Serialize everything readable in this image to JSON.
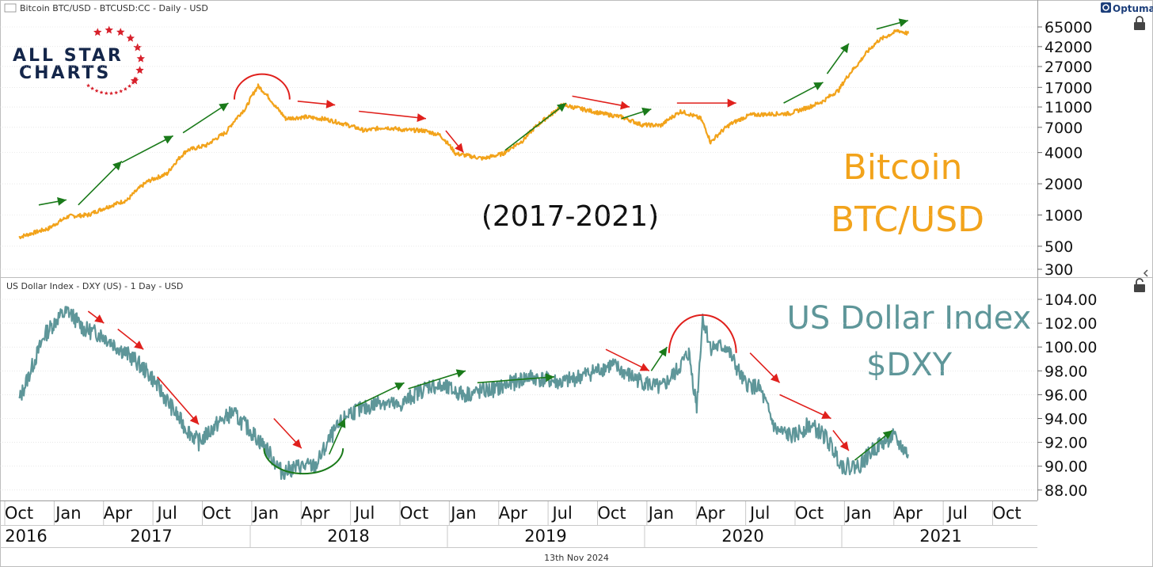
{
  "header": {
    "btc_title": "Bitcoin BTC/USD - BTCUSD:CC - Daily - USD",
    "dxy_title": "US Dollar Index - DXY (US) - 1 Day - USD",
    "brand": "Optuma",
    "footer_date": "13th Nov 2024"
  },
  "logo": {
    "line1": "ALL STAR",
    "line2": "CHARTS",
    "icon": "star-ring-icon"
  },
  "labels": {
    "btc_line1": "Bitcoin",
    "btc_line2": "BTC/USD",
    "dxy_line1": "US Dollar Index",
    "dxy_line2": "$DXY",
    "range": "(2017-2021)"
  },
  "colors": {
    "btc": "#f2a31b",
    "dxy": "#5e9699",
    "up_arrow": "#1a7a1a",
    "down_arrow": "#e0201c",
    "grid": "#d9d9d9"
  },
  "chart_data": [
    {
      "type": "line",
      "title": "Bitcoin BTC/USD - BTCUSD:CC - Daily - USD",
      "scale": "log",
      "y_ticks": [
        300,
        500,
        1000,
        2000,
        4000,
        7000,
        11000,
        17000,
        27000,
        42000,
        65000
      ],
      "y_tick_labels": [
        "300",
        "500",
        "1000",
        "2000",
        "4000",
        "7000",
        "11000",
        "17000",
        "27000",
        "42000",
        "65000"
      ],
      "x": [
        2016.75,
        2016.9,
        2017.0,
        2017.1,
        2017.2,
        2017.3,
        2017.4,
        2017.5,
        2017.6,
        2017.7,
        2017.8,
        2017.9,
        2017.96,
        2018.05,
        2018.1,
        2018.2,
        2018.3,
        2018.4,
        2018.5,
        2018.6,
        2018.7,
        2018.8,
        2018.88,
        2018.96,
        2019.1,
        2019.2,
        2019.3,
        2019.45,
        2019.5,
        2019.6,
        2019.7,
        2019.8,
        2019.9,
        2020.0,
        2020.1,
        2020.2,
        2020.25,
        2020.35,
        2020.45,
        2020.55,
        2020.65,
        2020.75,
        2020.82,
        2020.9,
        2021.0,
        2021.1,
        2021.2,
        2021.25
      ],
      "values": [
        610,
        740,
        970,
        1000,
        1200,
        1400,
        2100,
        2500,
        4200,
        4700,
        6300,
        10800,
        17500,
        11000,
        8500,
        8800,
        8400,
        7500,
        6500,
        7000,
        6600,
        6500,
        5900,
        3900,
        3500,
        3900,
        5200,
        9500,
        11500,
        10500,
        9500,
        8800,
        7400,
        7300,
        10000,
        8500,
        5000,
        7500,
        9200,
        9400,
        9500,
        11000,
        12500,
        16000,
        29000,
        48000,
        60000,
        56000
      ]
    },
    {
      "type": "line",
      "title": "US Dollar Index - DXY (US) - 1 Day - USD",
      "y_ticks": [
        88,
        90,
        92,
        94,
        96,
        98,
        100,
        102,
        104
      ],
      "y_tick_labels": [
        "88.00",
        "90.00",
        "92.00",
        "94.00",
        "96.00",
        "98.00",
        "100.00",
        "102.00",
        "104.00"
      ],
      "x": [
        2016.75,
        2016.82,
        2016.88,
        2016.95,
        2017.0,
        2017.08,
        2017.17,
        2017.25,
        2017.33,
        2017.42,
        2017.5,
        2017.58,
        2017.66,
        2017.75,
        2017.83,
        2017.92,
        2018.0,
        2018.08,
        2018.17,
        2018.25,
        2018.33,
        2018.42,
        2018.5,
        2018.58,
        2018.67,
        2018.75,
        2018.83,
        2018.92,
        2019.0,
        2019.17,
        2019.33,
        2019.5,
        2019.67,
        2019.75,
        2019.85,
        2019.92,
        2020.0,
        2020.08,
        2020.14,
        2020.18,
        2020.21,
        2020.25,
        2020.33,
        2020.42,
        2020.5,
        2020.58,
        2020.67,
        2020.75,
        2020.83,
        2020.92,
        2021.0,
        2021.08,
        2021.17,
        2021.25
      ],
      "values": [
        95.5,
        98.5,
        101.0,
        102.5,
        103.0,
        101.5,
        101.0,
        100.0,
        99.0,
        97.5,
        95.5,
        93.5,
        92.0,
        93.5,
        94.5,
        93.0,
        91.5,
        89.5,
        90.0,
        90.0,
        92.5,
        94.5,
        94.8,
        95.5,
        95.0,
        96.0,
        96.8,
        96.5,
        96.0,
        96.5,
        97.5,
        97.0,
        98.0,
        98.5,
        97.5,
        97.0,
        96.5,
        98.0,
        99.5,
        95.0,
        102.5,
        100.0,
        100.0,
        97.0,
        96.5,
        93.0,
        92.5,
        93.5,
        92.5,
        90.0,
        90.0,
        91.5,
        92.5,
        91.0
      ]
    }
  ],
  "x_axis": {
    "months": [
      "Oct",
      "Jan",
      "Apr",
      "Jul",
      "Oct",
      "Jan",
      "Apr",
      "Jul",
      "Oct",
      "Jan",
      "Apr",
      "Jul",
      "Oct",
      "Jan",
      "Apr",
      "Jul",
      "Oct",
      "Jan",
      "Apr",
      "Jul",
      "Oct"
    ],
    "month_times": [
      2016.75,
      2017.0,
      2017.25,
      2017.5,
      2017.75,
      2018.0,
      2018.25,
      2018.5,
      2018.75,
      2019.0,
      2019.25,
      2019.5,
      2019.75,
      2020.0,
      2020.25,
      2020.5,
      2020.75,
      2021.0,
      2021.25,
      2021.5,
      2021.75
    ],
    "years": [
      "2016",
      "2017",
      "2018",
      "2019",
      "2020",
      "2021"
    ],
    "year_centers": [
      2016.75,
      2017.5,
      2018.5,
      2019.5,
      2020.5,
      2021.25
    ]
  },
  "annotations": {
    "btc_up": [
      [
        2016.85,
        1250,
        2016.99,
        1400
      ],
      [
        2017.05,
        1250,
        2017.27,
        3300
      ],
      [
        2017.27,
        3200,
        2017.53,
        5800
      ],
      [
        2017.58,
        6200,
        2017.81,
        12000
      ]
    ],
    "btc_down": [
      [
        2018.16,
        12500,
        2018.35,
        11500
      ],
      [
        2018.47,
        10000,
        2018.81,
        8500
      ],
      [
        2018.91,
        6500,
        2019.0,
        4000
      ],
      [
        2019.8,
        8500,
        2019.95,
        10500
      ],
      [
        2020.08,
        12000,
        2020.38,
        12000
      ]
    ],
    "btc_up2": [
      [
        2019.21,
        4200,
        2019.52,
        12000
      ],
      [
        2020.62,
        12000,
        2020.82,
        19000
      ],
      [
        2020.84,
        23000,
        2020.95,
        45000
      ],
      [
        2021.09,
        62000,
        2021.25,
        75000
      ]
    ],
    "btc_down_fix": [
      [
        2019.55,
        14000,
        2019.84,
        11000
      ]
    ],
    "dxy_down": [
      [
        2017.1,
        103.0,
        2017.18,
        102.0
      ],
      [
        2017.25,
        101.5,
        2017.38,
        99.8
      ],
      [
        2017.45,
        97.5,
        2017.66,
        93.5
      ],
      [
        2018.04,
        94.0,
        2018.18,
        91.5
      ],
      [
        2019.72,
        99.8,
        2019.94,
        98.0
      ],
      [
        2020.45,
        99.5,
        2020.6,
        97.0
      ],
      [
        2020.6,
        96.0,
        2020.86,
        94.0
      ],
      [
        2020.87,
        93.0,
        2020.95,
        91.3
      ]
    ],
    "dxy_up": [
      [
        2018.32,
        91.0,
        2018.4,
        94.0
      ],
      [
        2018.45,
        95.0,
        2018.7,
        97.0
      ],
      [
        2018.72,
        96.5,
        2019.01,
        98.0
      ],
      [
        2019.07,
        97.0,
        2019.46,
        97.5
      ],
      [
        2019.95,
        98.0,
        2020.03,
        100.0
      ],
      [
        2020.98,
        90.5,
        2021.17,
        93.0
      ]
    ]
  }
}
